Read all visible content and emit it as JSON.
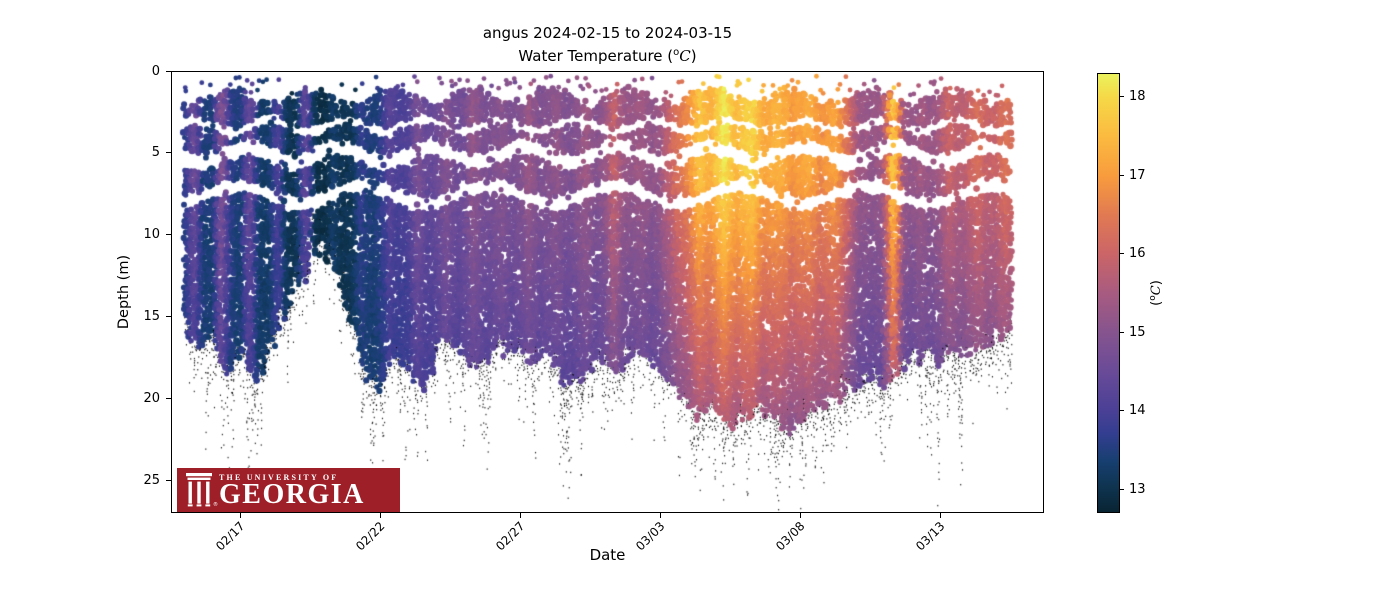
{
  "figure": {
    "title": "angus 2024-02-15 to 2024-03-15",
    "subtitle_prefix": "Water Temperature (",
    "subtitle_sup": "o",
    "subtitle_var": "C",
    "subtitle_suffix": ")"
  },
  "axis": {
    "xlabel": "Date",
    "ylabel": "Depth (m)",
    "xticks": [
      "02/17",
      "02/22",
      "02/27",
      "03/03",
      "03/08",
      "03/13"
    ],
    "yticks": [
      "0",
      "5",
      "10",
      "15",
      "20",
      "25"
    ]
  },
  "colorbar": {
    "ticks": [
      "18",
      "17",
      "16",
      "15",
      "14",
      "13"
    ],
    "label_prefix": "(",
    "label_sup": "o",
    "label_var": "C",
    "label_suffix": ")",
    "vmin": 12.7,
    "vmax": 18.3
  },
  "logo": {
    "line1": "THE UNIVERSITY OF",
    "line2": "GEORGIA",
    "registered": "®",
    "bg_color": "#9e1f28"
  },
  "chart_data": {
    "type": "scatter",
    "title": "angus 2024-02-15 to 2024-03-15",
    "subtitle": "Water Temperature (°C)",
    "xlabel": "Date",
    "ylabel": "Depth (m)",
    "date_start": "2024-02-15",
    "date_end": "2024-03-15",
    "ylim": [
      0,
      27
    ],
    "xlim_days": [
      -0.46,
      30.75
    ],
    "x_ticks_days": [
      2,
      7,
      12,
      17,
      22,
      27
    ],
    "colorbar_range_c": [
      12.7,
      18.3
    ],
    "colormap_stops": [
      [
        12.7,
        "#082433"
      ],
      [
        13.0,
        "#0e334e"
      ],
      [
        13.35,
        "#173f70"
      ],
      [
        13.7,
        "#333e90"
      ],
      [
        14.0,
        "#4a4096"
      ],
      [
        14.5,
        "#6a4b98"
      ],
      [
        15.0,
        "#86548e"
      ],
      [
        15.5,
        "#a85b80"
      ],
      [
        16.0,
        "#cb6567"
      ],
      [
        16.5,
        "#e17a52"
      ],
      [
        17.0,
        "#f89c3d"
      ],
      [
        17.5,
        "#fbba40"
      ],
      [
        18.0,
        "#f6d847"
      ],
      [
        18.3,
        "#eaf25d"
      ]
    ],
    "surface_temp_keyframes": [
      [
        0,
        13.6
      ],
      [
        0.35,
        14.6
      ],
      [
        0.7,
        13.5
      ],
      [
        1.0,
        13.4
      ],
      [
        1.35,
        15.0
      ],
      [
        1.7,
        13.6
      ],
      [
        2.0,
        13.4
      ],
      [
        2.35,
        14.6
      ],
      [
        2.7,
        13.3
      ],
      [
        3.0,
        13.2
      ],
      [
        3.35,
        14.1
      ],
      [
        3.7,
        13.1
      ],
      [
        4.0,
        13.1
      ],
      [
        4.35,
        14.4
      ],
      [
        4.7,
        13.0
      ],
      [
        5.0,
        12.9
      ],
      [
        5.35,
        13.3
      ],
      [
        5.7,
        13.0
      ],
      [
        6.0,
        13.1
      ],
      [
        6.35,
        13.7
      ],
      [
        6.7,
        13.4
      ],
      [
        7.0,
        13.6
      ],
      [
        7.35,
        14.3
      ],
      [
        7.7,
        14.0
      ],
      [
        8.0,
        14.1
      ],
      [
        8.35,
        14.8
      ],
      [
        8.7,
        14.4
      ],
      [
        9.0,
        14.5
      ],
      [
        9.35,
        15.0
      ],
      [
        9.7,
        14.6
      ],
      [
        10.0,
        14.7
      ],
      [
        10.35,
        15.2
      ],
      [
        10.7,
        14.8
      ],
      [
        11.0,
        14.8
      ],
      [
        11.35,
        15.1
      ],
      [
        11.7,
        14.8
      ],
      [
        12.0,
        14.9
      ],
      [
        12.35,
        15.3
      ],
      [
        12.7,
        14.9
      ],
      [
        13.0,
        15.0
      ],
      [
        13.35,
        15.2
      ],
      [
        13.7,
        14.9
      ],
      [
        14.0,
        15.0
      ],
      [
        14.35,
        15.4
      ],
      [
        14.7,
        15.0
      ],
      [
        15.0,
        15.1
      ],
      [
        15.35,
        16.0
      ],
      [
        15.7,
        15.3
      ],
      [
        16.0,
        15.2
      ],
      [
        16.35,
        15.4
      ],
      [
        16.7,
        15.1
      ],
      [
        17.0,
        15.3
      ],
      [
        17.5,
        16.2
      ],
      [
        18.0,
        16.8
      ],
      [
        18.4,
        17.7
      ],
      [
        18.8,
        17.3
      ],
      [
        19.3,
        18.2
      ],
      [
        19.7,
        17.5
      ],
      [
        20.3,
        18.0
      ],
      [
        20.7,
        17.2
      ],
      [
        21.3,
        17.4
      ],
      [
        21.7,
        16.9
      ],
      [
        22.3,
        17.3
      ],
      [
        22.7,
        16.8
      ],
      [
        23.3,
        17.1
      ],
      [
        23.7,
        16.3
      ],
      [
        24.1,
        15.4
      ],
      [
        24.5,
        15.2
      ],
      [
        24.9,
        15.3
      ],
      [
        25.15,
        16.5
      ],
      [
        25.3,
        17.9
      ],
      [
        25.5,
        17.0
      ],
      [
        25.7,
        15.4
      ],
      [
        26.0,
        15.2
      ],
      [
        26.35,
        15.5
      ],
      [
        26.7,
        15.2
      ],
      [
        27.0,
        15.5
      ],
      [
        27.35,
        16.1
      ],
      [
        27.7,
        15.7
      ],
      [
        28.0,
        15.9
      ],
      [
        28.35,
        16.3
      ],
      [
        28.7,
        15.9
      ],
      [
        29.0,
        16.0
      ],
      [
        29.35,
        16.4
      ],
      [
        29.5,
        16.2
      ]
    ],
    "colored_bottom_keyframes": [
      [
        0,
        15.5
      ],
      [
        0.5,
        17
      ],
      [
        1,
        16
      ],
      [
        1.5,
        18.5
      ],
      [
        2,
        17
      ],
      [
        2.5,
        19
      ],
      [
        3,
        17
      ],
      [
        3.5,
        14.5
      ],
      [
        4,
        13
      ],
      [
        4.5,
        11.5
      ],
      [
        4.9,
        10.5
      ],
      [
        5.3,
        12
      ],
      [
        5.7,
        14
      ],
      [
        6,
        15.5
      ],
      [
        6.5,
        18.5
      ],
      [
        7,
        19
      ],
      [
        7.5,
        17
      ],
      [
        8,
        18
      ],
      [
        8.5,
        19.5
      ],
      [
        9,
        17
      ],
      [
        9.5,
        16
      ],
      [
        10,
        17.5
      ],
      [
        10.5,
        18
      ],
      [
        11,
        17
      ],
      [
        11.5,
        16.5
      ],
      [
        12,
        17
      ],
      [
        12.5,
        17.5
      ],
      [
        13,
        17
      ],
      [
        13.5,
        18.5
      ],
      [
        14,
        19
      ],
      [
        14.5,
        18
      ],
      [
        15,
        17.5
      ],
      [
        15.5,
        18
      ],
      [
        16,
        17
      ],
      [
        16.5,
        17.5
      ],
      [
        17,
        18
      ],
      [
        17.5,
        19
      ],
      [
        18,
        20
      ],
      [
        18.5,
        21
      ],
      [
        19,
        20.5
      ],
      [
        19.5,
        21.5
      ],
      [
        20,
        21
      ],
      [
        20.5,
        20
      ],
      [
        21,
        21
      ],
      [
        21.5,
        21.8
      ],
      [
        22,
        21
      ],
      [
        22.5,
        20.5
      ],
      [
        23,
        20
      ],
      [
        23.5,
        19.5
      ],
      [
        24,
        19
      ],
      [
        24.5,
        18.5
      ],
      [
        25,
        19
      ],
      [
        25.5,
        18
      ],
      [
        26,
        17.5
      ],
      [
        26.5,
        17
      ],
      [
        27,
        17.5
      ],
      [
        27.5,
        16.5
      ],
      [
        28,
        17
      ],
      [
        28.5,
        16.5
      ],
      [
        29,
        16
      ],
      [
        29.5,
        15.5
      ]
    ],
    "deep_spikes": [
      [
        13.6,
        27
      ],
      [
        18.2,
        22.5
      ],
      [
        19.1,
        23.2
      ],
      [
        20.1,
        23.6
      ],
      [
        21.1,
        24.2
      ],
      [
        22.1,
        25
      ],
      [
        22.9,
        24.3
      ],
      [
        23.6,
        23.2
      ],
      [
        24.4,
        22.6
      ],
      [
        25.1,
        23
      ],
      [
        26.6,
        21
      ],
      [
        28.1,
        20
      ],
      [
        29.1,
        19.5
      ]
    ],
    "sensor_gaps": [
      {
        "center": 5.05,
        "width": 0.5,
        "wobble": 0.45,
        "freq": 1.9,
        "phase": 0.5
      },
      {
        "center": 7.5,
        "width": 0.45,
        "wobble": 0.55,
        "freq": 1.4,
        "phase": 2.1
      },
      {
        "center": 3.3,
        "width": 0.28,
        "wobble": 0.35,
        "freq": 2.3,
        "phase": 4.0
      }
    ],
    "cloud_top_depth_m": 1.7,
    "marker_notes": "colored dots = water temperature; tiny black speckles = sub-cloud points"
  }
}
